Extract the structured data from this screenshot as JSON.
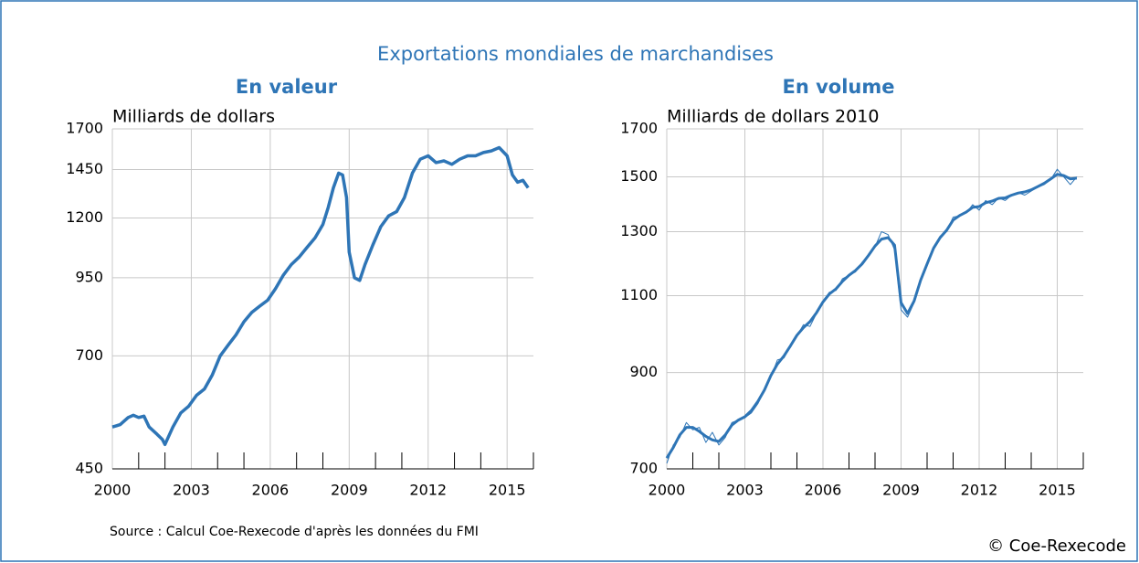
{
  "title": "Exportations mondiales de marchandises",
  "source": "Source : Calcul Coe-Rexecode d'après les données du FMI",
  "copyright": "© Coe-Rexecode",
  "chart_data": [
    {
      "type": "line",
      "title": "En valeur",
      "ylabel": "Milliards de dollars",
      "log_scale": true,
      "grid": true,
      "xlim": [
        2000,
        2016
      ],
      "xticks": [
        2000,
        2003,
        2006,
        2009,
        2012,
        2015
      ],
      "xminorticks": [
        2001,
        2002,
        2004,
        2005,
        2007,
        2008,
        2010,
        2011,
        2013,
        2014,
        2016
      ],
      "ylim": [
        450,
        1700
      ],
      "yticks": [
        450,
        700,
        950,
        1200,
        1450,
        1700
      ],
      "x": [
        2000.0,
        2000.3,
        2000.6,
        2000.8,
        2001.0,
        2001.2,
        2001.4,
        2001.7,
        2001.9,
        2002.0,
        2002.3,
        2002.6,
        2002.9,
        2003.2,
        2003.5,
        2003.8,
        2004.1,
        2004.4,
        2004.7,
        2005.0,
        2005.3,
        2005.6,
        2005.9,
        2006.2,
        2006.5,
        2006.8,
        2007.1,
        2007.4,
        2007.7,
        2008.0,
        2008.2,
        2008.4,
        2008.6,
        2008.75,
        2008.9,
        2009.0,
        2009.2,
        2009.4,
        2009.6,
        2009.9,
        2010.2,
        2010.5,
        2010.8,
        2011.1,
        2011.4,
        2011.7,
        2012.0,
        2012.3,
        2012.6,
        2012.9,
        2013.2,
        2013.5,
        2013.8,
        2014.1,
        2014.4,
        2014.7,
        2015.0,
        2015.2,
        2015.4,
        2015.6,
        2015.8
      ],
      "series": [
        {
          "color": "#2e75b6",
          "values": [
            530,
            535,
            550,
            555,
            550,
            553,
            530,
            515,
            505,
            495,
            530,
            560,
            575,
            600,
            615,
            650,
            700,
            730,
            760,
            800,
            830,
            850,
            870,
            910,
            960,
            1000,
            1030,
            1070,
            1110,
            1170,
            1250,
            1350,
            1430,
            1420,
            1300,
            1050,
            950,
            940,
            1000,
            1080,
            1160,
            1210,
            1230,
            1300,
            1430,
            1510,
            1530,
            1490,
            1500,
            1480,
            1510,
            1530,
            1530,
            1550,
            1560,
            1580,
            1530,
            1420,
            1380,
            1390,
            1350
          ]
        }
      ]
    },
    {
      "type": "line",
      "title": "En volume",
      "ylabel": "Milliards de dollars 2010",
      "log_scale": true,
      "grid": true,
      "xlim": [
        2000,
        2016
      ],
      "xticks": [
        2000,
        2003,
        2006,
        2009,
        2012,
        2015
      ],
      "xminorticks": [
        2001,
        2002,
        2004,
        2005,
        2007,
        2008,
        2010,
        2011,
        2013,
        2014,
        2016
      ],
      "ylim": [
        700,
        1700
      ],
      "yticks": [
        700,
        900,
        1100,
        1300,
        1500,
        1700
      ],
      "x": [
        2000.0,
        2000.25,
        2000.5,
        2000.75,
        2001.0,
        2001.25,
        2001.5,
        2001.75,
        2002.0,
        2002.25,
        2002.5,
        2002.75,
        2003.0,
        2003.25,
        2003.5,
        2003.75,
        2004.0,
        2004.25,
        2004.5,
        2004.75,
        2005.0,
        2005.25,
        2005.5,
        2005.75,
        2006.0,
        2006.25,
        2006.5,
        2006.75,
        2007.0,
        2007.25,
        2007.5,
        2007.75,
        2008.0,
        2008.25,
        2008.5,
        2008.75,
        2009.0,
        2009.25,
        2009.5,
        2009.75,
        2010.0,
        2010.25,
        2010.5,
        2010.75,
        2011.0,
        2011.25,
        2011.5,
        2011.75,
        2012.0,
        2012.25,
        2012.5,
        2012.75,
        2013.0,
        2013.25,
        2013.5,
        2013.75,
        2014.0,
        2014.25,
        2014.5,
        2014.75,
        2015.0,
        2015.25,
        2015.5,
        2015.75
      ],
      "series": [
        {
          "color": "#2e75b6",
          "width": 1,
          "values": [
            710,
            745,
            760,
            790,
            775,
            780,
            750,
            770,
            745,
            760,
            790,
            795,
            800,
            810,
            830,
            860,
            890,
            930,
            935,
            965,
            990,
            1020,
            1015,
            1050,
            1085,
            1110,
            1115,
            1150,
            1160,
            1170,
            1200,
            1220,
            1250,
            1300,
            1290,
            1240,
            1060,
            1040,
            1080,
            1150,
            1190,
            1250,
            1285,
            1300,
            1350,
            1355,
            1365,
            1395,
            1375,
            1410,
            1395,
            1420,
            1410,
            1430,
            1440,
            1430,
            1445,
            1460,
            1470,
            1490,
            1530,
            1500,
            1470,
            1500
          ]
        },
        {
          "color": "#2e75b6",
          "width": 3,
          "values": [
            720,
            740,
            765,
            780,
            780,
            772,
            762,
            755,
            752,
            765,
            785,
            795,
            802,
            815,
            835,
            860,
            893,
            920,
            940,
            965,
            992,
            1012,
            1028,
            1052,
            1082,
            1105,
            1120,
            1142,
            1160,
            1175,
            1195,
            1222,
            1252,
            1275,
            1280,
            1255,
            1080,
            1050,
            1085,
            1145,
            1195,
            1245,
            1280,
            1305,
            1340,
            1356,
            1368,
            1385,
            1388,
            1402,
            1408,
            1418,
            1420,
            1430,
            1438,
            1442,
            1450,
            1462,
            1475,
            1492,
            1510,
            1505,
            1492,
            1495
          ]
        }
      ]
    }
  ]
}
